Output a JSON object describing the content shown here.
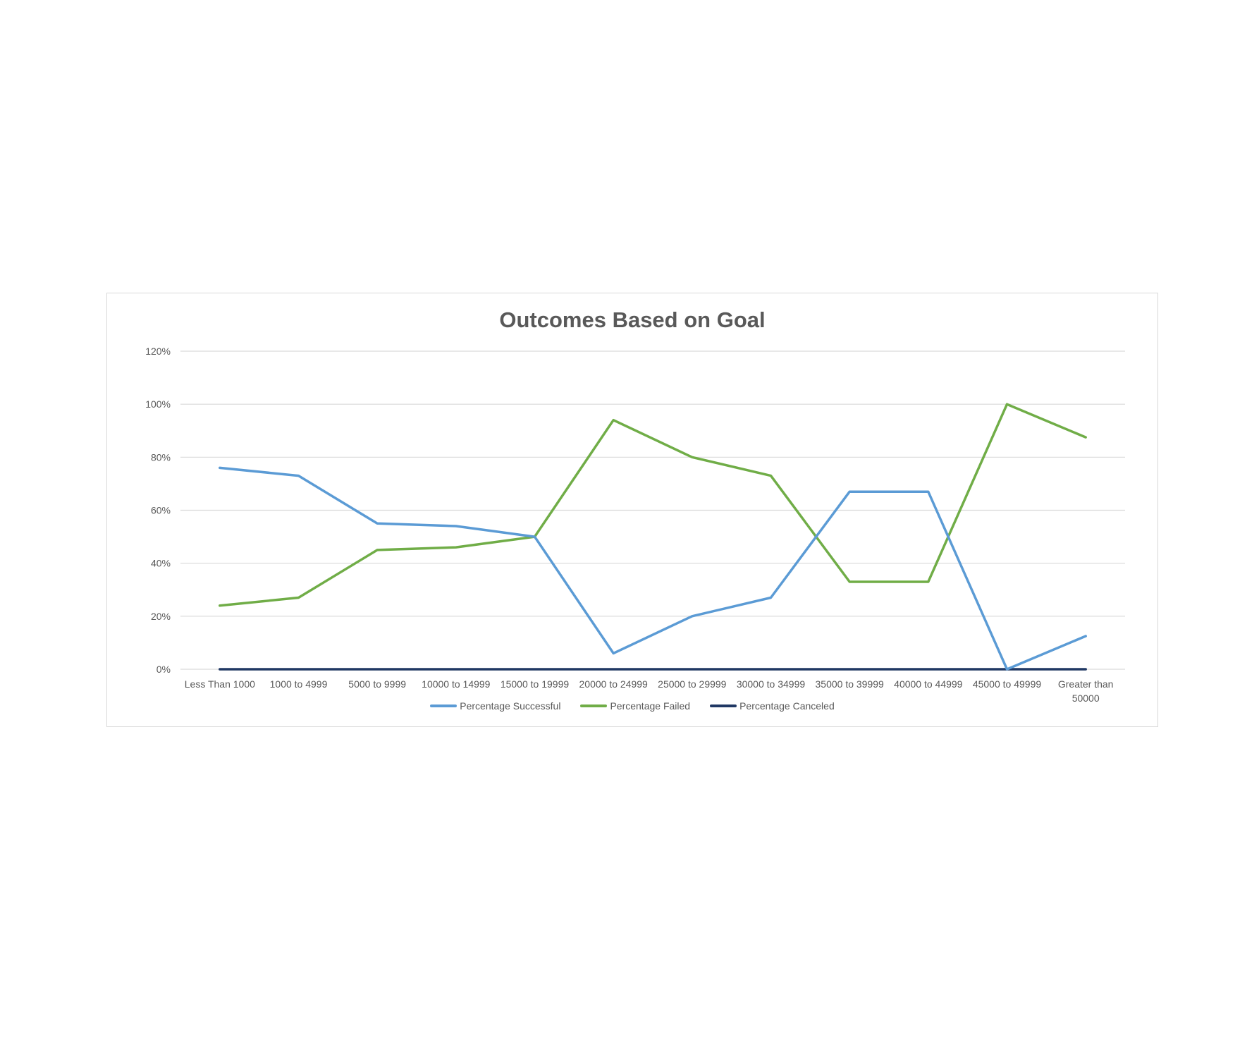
{
  "chart_data": {
    "type": "line",
    "title": "Outcomes Based on Goal",
    "xlabel": "",
    "ylabel": "",
    "categories": [
      "Less Than 1000",
      "1000 to 4999",
      "5000 to 9999",
      "10000 to 14999",
      "15000 to 19999",
      "20000 to 24999",
      "25000 to 29999",
      "30000 to 34999",
      "35000 to 39999",
      "40000 to 44999",
      "45000 to 49999",
      "Greater than 50000"
    ],
    "ylim": [
      0,
      1.2
    ],
    "yticks": [
      0,
      0.2,
      0.4,
      0.6,
      0.8,
      1.0,
      1.2
    ],
    "ytick_labels": [
      "0%",
      "20%",
      "40%",
      "60%",
      "80%",
      "100%",
      "120%"
    ],
    "grid": true,
    "legend_position": "bottom",
    "series": [
      {
        "name": "Percentage Successful",
        "color": "#5b9bd5",
        "values": [
          0.76,
          0.73,
          0.55,
          0.54,
          0.5,
          0.06,
          0.2,
          0.27,
          0.67,
          0.67,
          0.0,
          0.125
        ]
      },
      {
        "name": "Percentage Failed",
        "color": "#70ad47",
        "values": [
          0.24,
          0.27,
          0.45,
          0.46,
          0.5,
          0.94,
          0.8,
          0.73,
          0.33,
          0.33,
          1.0,
          0.875
        ]
      },
      {
        "name": "Percentage Canceled",
        "color": "#203864",
        "values": [
          0,
          0,
          0,
          0,
          0,
          0,
          0,
          0,
          0,
          0,
          0,
          0
        ]
      }
    ]
  }
}
